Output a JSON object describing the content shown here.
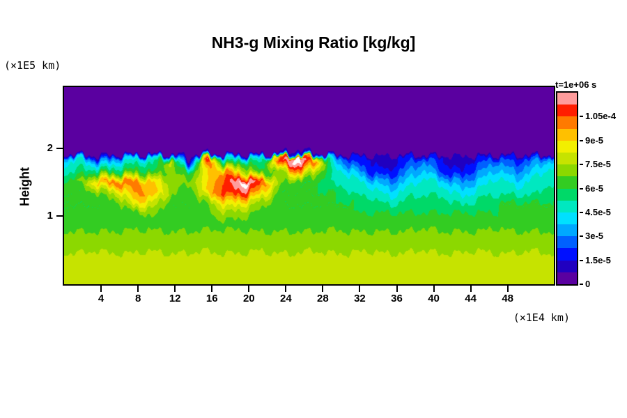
{
  "title": "NH3-g Mixing Ratio [kg/kg]",
  "annotations": {
    "time_label": "t=1e+06 s",
    "y_unit_label": "(×1E5 km)",
    "x_unit_label": "(×1E4 km)",
    "y_axis_label": "Height"
  },
  "chart_data": {
    "type": "heatmap",
    "title": "NH3-g Mixing Ratio [kg/kg]",
    "xlabel": "(×1E4 km)",
    "ylabel": "Height (×1E5 km)",
    "x_range": [
      0,
      53
    ],
    "y_range": [
      0,
      2.9
    ],
    "x_ticks": [
      4,
      8,
      12,
      16,
      20,
      24,
      28,
      32,
      36,
      40,
      44,
      48
    ],
    "y_ticks": [
      1,
      2
    ],
    "value_units": "kg/kg, grid values in units of 1e-5",
    "grid_row_y": [
      2.9,
      2.0,
      1.92,
      1.86,
      1.8,
      1.65,
      1.5,
      1.35,
      1.2,
      1.05,
      0.9,
      0.7,
      0.45,
      0.2,
      0.0
    ],
    "grid_values_by_row": [
      [
        0,
        0,
        0,
        0,
        0,
        0,
        0,
        0,
        0,
        0,
        0,
        0,
        0,
        0,
        0,
        0,
        0,
        0,
        0,
        0,
        0,
        0,
        0,
        0,
        0,
        0,
        0,
        0
      ],
      [
        0,
        0,
        0,
        0,
        0,
        0,
        0,
        0,
        0,
        0,
        0,
        0,
        0,
        0,
        0,
        0,
        0,
        0,
        0,
        0,
        0,
        0,
        0,
        0,
        0,
        0,
        0,
        0
      ],
      [
        0,
        0,
        0,
        0,
        0,
        0,
        0,
        0,
        1,
        0,
        0,
        0,
        1,
        2,
        1,
        0,
        0,
        0,
        0,
        0,
        0,
        0,
        0,
        0,
        0,
        0,
        0,
        0
      ],
      [
        3,
        4,
        1,
        3,
        4,
        4,
        5,
        0,
        9,
        4,
        4,
        4,
        10,
        12.5,
        8,
        3,
        2,
        1.5,
        1,
        2,
        2,
        1.5,
        1,
        1.5,
        2,
        2,
        2,
        3
      ],
      [
        4,
        5,
        3,
        4,
        5,
        5,
        8,
        1,
        11.5,
        5,
        6,
        5,
        11,
        12.5,
        10,
        4,
        2,
        1.5,
        1,
        2,
        3,
        1.5,
        1,
        2,
        3,
        2,
        3,
        4
      ],
      [
        5,
        5.5,
        6,
        6,
        6.5,
        6,
        7,
        6,
        9,
        10,
        8,
        6,
        7,
        10,
        7,
        5,
        4,
        2,
        1.5,
        3,
        4,
        2,
        1.5,
        3,
        4,
        3,
        4,
        5
      ],
      [
        6,
        7,
        9.5,
        10.5,
        10,
        9,
        7,
        7,
        9,
        11,
        12.5,
        10.5,
        7,
        6,
        6,
        5,
        5,
        4,
        3,
        4,
        5,
        4,
        3,
        4,
        5,
        4,
        5,
        5
      ],
      [
        6,
        6,
        7,
        8,
        10,
        9.5,
        7,
        6,
        9.5,
        11,
        11,
        9,
        6,
        6,
        6,
        6,
        5,
        5,
        4,
        5,
        5,
        5,
        4,
        5,
        5,
        5,
        5,
        6
      ],
      [
        6,
        6,
        6,
        6.5,
        9,
        8,
        6,
        6,
        7,
        9,
        8.5,
        7,
        6,
        6,
        6,
        6,
        6,
        5.5,
        5,
        5.5,
        6,
        5.5,
        5,
        5.5,
        6,
        6,
        6,
        6
      ],
      [
        6,
        6,
        6,
        6,
        6.5,
        7,
        6,
        6,
        6.5,
        7.5,
        7,
        6.5,
        6,
        6,
        6,
        6,
        6,
        6,
        6,
        6,
        6,
        6,
        6,
        6,
        6,
        6,
        6,
        6
      ],
      [
        6.3,
        6.3,
        6.3,
        6.3,
        6.5,
        6.5,
        6.3,
        6.3,
        6.5,
        6.5,
        6.5,
        6.3,
        6.3,
        6.3,
        6.3,
        6.3,
        6.3,
        6.3,
        6.3,
        6.3,
        6.5,
        6.3,
        6.3,
        6.3,
        6.5,
        6.3,
        6.3,
        6.3
      ],
      [
        7,
        7,
        7,
        7,
        7,
        7,
        7,
        7,
        7,
        7,
        7,
        7,
        7,
        7,
        7,
        7.2,
        7,
        7,
        7,
        7,
        7.2,
        7,
        7,
        7,
        7.2,
        7,
        7,
        7
      ],
      [
        7.5,
        7.5,
        7.6,
        7.5,
        7.5,
        7.6,
        7.5,
        7.5,
        7.6,
        7.5,
        7.5,
        7.6,
        7.5,
        7.5,
        7.6,
        7.5,
        7.5,
        7.6,
        7.5,
        7.5,
        7.6,
        7.5,
        7.5,
        7.6,
        7.5,
        7.5,
        7.6,
        7.5
      ],
      [
        7.8,
        7.8,
        7.8,
        7.8,
        7.8,
        7.8,
        7.8,
        7.8,
        7.8,
        7.8,
        7.8,
        7.8,
        7.8,
        7.8,
        7.8,
        7.8,
        7.8,
        7.8,
        7.8,
        7.8,
        7.8,
        7.8,
        7.8,
        7.8,
        7.8,
        7.8,
        7.8,
        7.8
      ],
      [
        7.8,
        7.8,
        7.8,
        7.8,
        7.8,
        7.8,
        7.8,
        7.8,
        7.8,
        7.8,
        7.8,
        7.8,
        7.8,
        7.8,
        7.8,
        7.8,
        7.8,
        7.8,
        7.8,
        7.8,
        7.8,
        7.8,
        7.8,
        7.8,
        7.8,
        7.8,
        7.8,
        7.8
      ]
    ],
    "colorbar": {
      "min_e5": 0,
      "max_e5": 12,
      "band_step_e5": 0.75,
      "tick_labels": [
        "0",
        "1.5e-5",
        "3e-5",
        "4.5e-5",
        "6e-5",
        "7.5e-5",
        "9e-5",
        "1.05e-4"
      ],
      "tick_values_e5": [
        0,
        1.5,
        3,
        4.5,
        6,
        7.5,
        9,
        10.5
      ],
      "colors": [
        "#5a00a0",
        "#2000c0",
        "#0010ff",
        "#0060ff",
        "#00a8ff",
        "#00e0ff",
        "#00e8c0",
        "#00d968",
        "#33cc22",
        "#8cd800",
        "#c6e300",
        "#f2ef00",
        "#ffc000",
        "#ff7a00",
        "#ff1e00",
        "#ff9c9c"
      ],
      "over_color": "#ffffff"
    }
  }
}
